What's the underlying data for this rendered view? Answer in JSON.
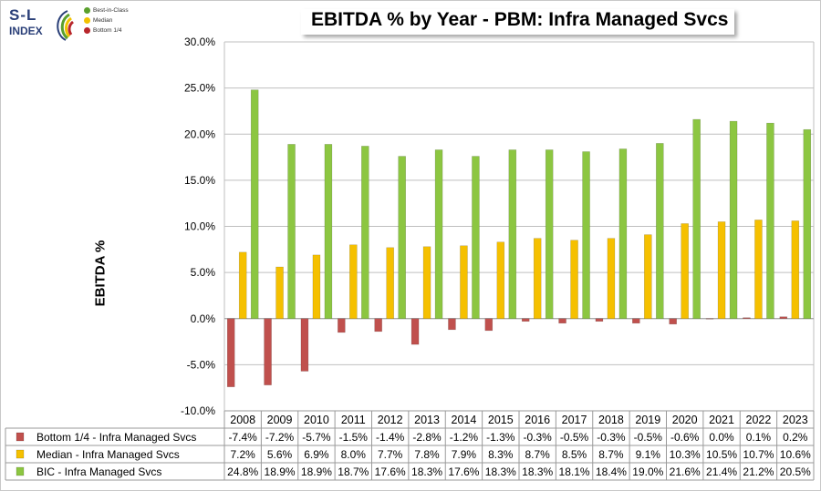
{
  "logo": {
    "brand": "S-L",
    "sub": "INDEX",
    "legend": [
      {
        "label": "Best-in-Class",
        "color": "#5aa02c"
      },
      {
        "label": "Median",
        "color": "#f2c200"
      },
      {
        "label": "Bottom 1/4",
        "color": "#b8262b"
      }
    ]
  },
  "chart_data": {
    "type": "bar",
    "title": "EBITDA % by Year - PBM: Infra Managed Svcs",
    "xlabel": "",
    "ylabel": "EBITDA %",
    "ylim": [
      -10,
      30
    ],
    "yticks": [
      "30.0%",
      "25.0%",
      "20.0%",
      "15.0%",
      "10.0%",
      "5.0%",
      "0.0%",
      "-5.0%",
      "-10.0%"
    ],
    "grid": true,
    "categories": [
      "2008",
      "2009",
      "2010",
      "2011",
      "2012",
      "2013",
      "2014",
      "2015",
      "2016",
      "2017",
      "2018",
      "2019",
      "2020",
      "2021",
      "2022",
      "2023"
    ],
    "series": [
      {
        "name": "Bottom 1/4 - Infra Managed Svcs",
        "color": "#c0504d",
        "values": [
          -7.4,
          -7.2,
          -5.7,
          -1.5,
          -1.4,
          -2.8,
          -1.2,
          -1.3,
          -0.3,
          -0.5,
          -0.3,
          -0.5,
          -0.6,
          0.0,
          0.1,
          0.2
        ],
        "labels": [
          "-7.4%",
          "-7.2%",
          "-5.7%",
          "-1.5%",
          "-1.4%",
          "-2.8%",
          "-1.2%",
          "-1.3%",
          "-0.3%",
          "-0.5%",
          "-0.3%",
          "-0.5%",
          "-0.6%",
          "0.0%",
          "0.1%",
          "0.2%"
        ]
      },
      {
        "name": "Median - Infra Managed Svcs",
        "color": "#f5c000",
        "values": [
          7.2,
          5.6,
          6.9,
          8.0,
          7.7,
          7.8,
          7.9,
          8.3,
          8.7,
          8.5,
          8.7,
          9.1,
          10.3,
          10.5,
          10.7,
          10.6
        ],
        "labels": [
          "7.2%",
          "5.6%",
          "6.9%",
          "8.0%",
          "7.7%",
          "7.8%",
          "7.9%",
          "8.3%",
          "8.7%",
          "8.5%",
          "8.7%",
          "9.1%",
          "10.3%",
          "10.5%",
          "10.7%",
          "10.6%"
        ]
      },
      {
        "name": "BIC - Infra Managed Svcs",
        "color": "#8cc641",
        "values": [
          24.8,
          18.9,
          18.9,
          18.7,
          17.6,
          18.3,
          17.6,
          18.3,
          18.3,
          18.1,
          18.4,
          19.0,
          21.6,
          21.4,
          21.2,
          20.5
        ],
        "labels": [
          "24.8%",
          "18.9%",
          "18.9%",
          "18.7%",
          "17.6%",
          "18.3%",
          "17.6%",
          "18.3%",
          "18.3%",
          "18.1%",
          "18.4%",
          "19.0%",
          "21.6%",
          "21.4%",
          "21.2%",
          "20.5%"
        ]
      }
    ]
  }
}
